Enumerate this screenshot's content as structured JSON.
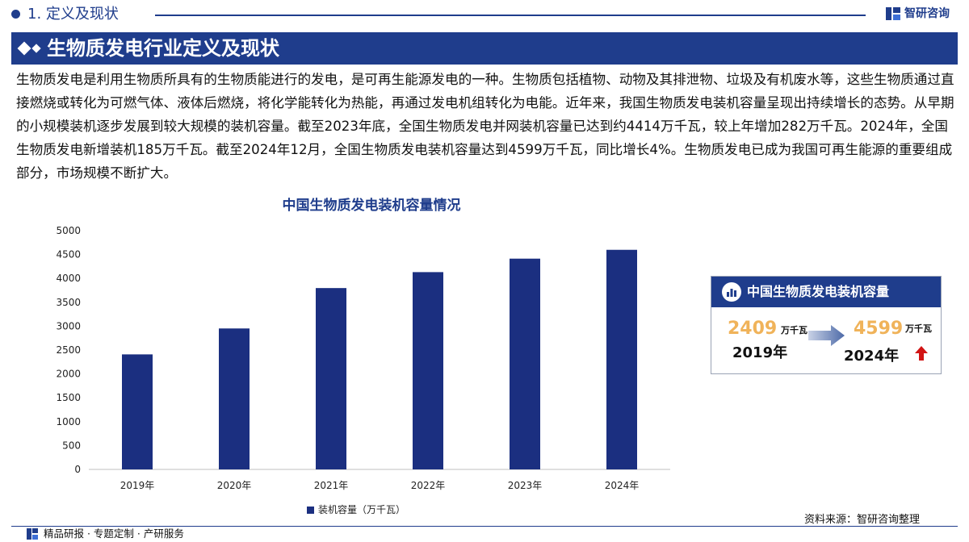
{
  "header": {
    "section_title": "1. 定义及现状",
    "brand_name": "智研咨询",
    "banner_title": "生物质发电行业定义及现状"
  },
  "intro": "生物质发电是利用生物质所具有的生物质能进行的发电，是可再生能源发电的一种。生物质包括植物、动物及其排泄物、垃圾及有机废水等，这些生物质通过直接燃烧或转化为可燃气体、液体后燃烧，将化学能转化为热能，再通过发电机组转化为电能。近年来，我国生物质发电装机容量呈现出持续增长的态势。从早期的小规模装机逐步发展到较大规模的装机容量。截至2023年底，全国生物质发电并网装机容量已达到约4414万千瓦，较上年增加282万千瓦。2024年，全国生物质发电新增装机185万千瓦。截至2024年12月，全国生物质发电装机容量达到4599万千瓦，同比增长4%。生物质发电已成为我国可再生能源的重要组成部分，市场规模不断扩大。",
  "chart_data": {
    "type": "bar",
    "title": "中国生物质发电装机容量情况",
    "categories": [
      "2019年",
      "2020年",
      "2021年",
      "2022年",
      "2023年",
      "2024年"
    ],
    "series": [
      {
        "name": "装机容量（万千瓦）",
        "values": [
          2409,
          2952,
          3798,
          4132,
          4414,
          4599
        ]
      }
    ],
    "ylim": [
      0,
      5000
    ],
    "yticks": [
      0,
      500,
      1000,
      1500,
      2000,
      2500,
      3000,
      3500,
      4000,
      4500,
      5000
    ],
    "grid": false,
    "legend": "bottom",
    "bar_color": "#1b2f80"
  },
  "card": {
    "title": "中国生物质发电装机容量",
    "from_value": "2409",
    "from_unit": "万千瓦",
    "from_year": "2019年",
    "to_value": "4599",
    "to_unit": "万千瓦",
    "to_year": "2024年",
    "trend_icon": "up-arrow-icon"
  },
  "source": "资料来源：智研咨询整理",
  "footer": {
    "tagline": "精品研报 · 专题定制 · 产研服务"
  },
  "colors": {
    "primary": "#1f3d8c",
    "accent": "#f0b35a",
    "up": "#d11414"
  }
}
